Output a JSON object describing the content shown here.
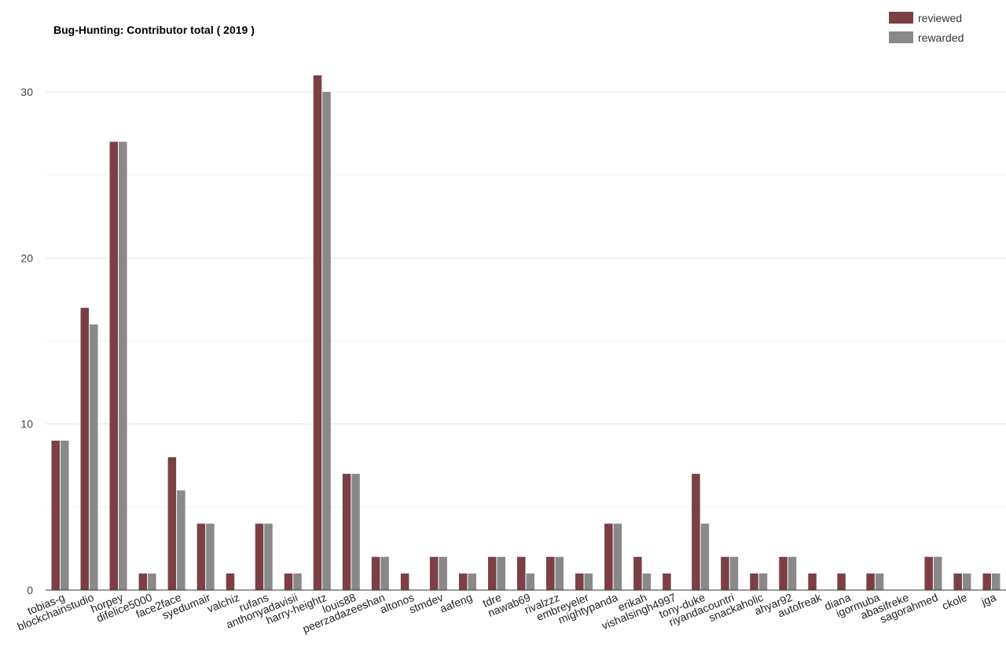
{
  "colors": {
    "reviewed": "#7b3f45",
    "rewarded": "#898989",
    "grid": "#e3e3e3",
    "axis": "#333333"
  },
  "chart_data": {
    "type": "bar",
    "title": "Bug-Hunting: Contributor total ( 2019 )",
    "xlabel": "",
    "ylabel": "",
    "ylim": [
      0,
      30
    ],
    "yticks": [
      0,
      10,
      20,
      30
    ],
    "grid": true,
    "legend_position": "top-right",
    "categories": [
      "tobias-g",
      "blockchainstudio",
      "horpey",
      "difelice5000",
      "face2face",
      "syedumair",
      "valchiz",
      "rufans",
      "anthonyadavisii",
      "harry-heightz",
      "louis88",
      "peerzadazeeshan",
      "altonos",
      "stmdev",
      "aafeng",
      "tdre",
      "nawab69",
      "rivalzzz",
      "embreyeler",
      "mightypanda",
      "erikah",
      "vishalsingh4997",
      "tony-duke",
      "riyandacountri",
      "snackaholic",
      "ahyar92",
      "autofreak",
      "diana",
      "igormuba",
      "abasifreke",
      "sagorahmed",
      "ckole",
      "jga"
    ],
    "series": [
      {
        "name": "reviewed",
        "values": [
          9,
          17,
          27,
          1,
          8,
          4,
          1,
          4,
          1,
          31,
          7,
          2,
          1,
          2,
          1,
          2,
          2,
          2,
          1,
          4,
          2,
          1,
          7,
          2,
          1,
          2,
          1,
          1,
          1,
          0,
          2,
          1,
          1
        ]
      },
      {
        "name": "rewarded",
        "values": [
          9,
          16,
          27,
          1,
          6,
          4,
          0,
          4,
          1,
          30,
          7,
          2,
          0,
          2,
          1,
          2,
          1,
          2,
          1,
          4,
          1,
          0,
          4,
          2,
          1,
          2,
          0,
          0,
          1,
          0,
          2,
          1,
          1
        ]
      }
    ]
  }
}
